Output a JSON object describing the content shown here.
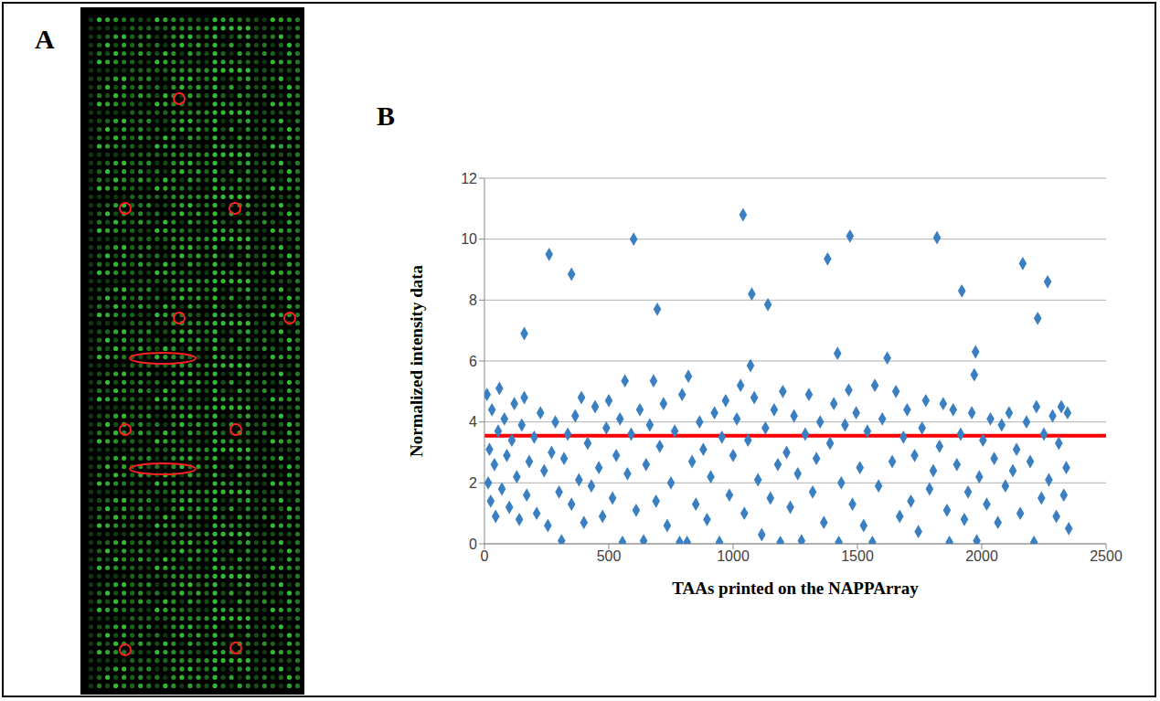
{
  "image_panel": {
    "label": "A"
  },
  "chart_data": {
    "type": "scatter",
    "panel_label": "B",
    "x_label": "TAAs printed on the NAPPArray",
    "y_label": "Normalized intensity data",
    "x": [
      10,
      15,
      20,
      25,
      30,
      40,
      45,
      55,
      60,
      70,
      80,
      90,
      100,
      110,
      120,
      130,
      140,
      150,
      160,
      170,
      180,
      200,
      210,
      225,
      240,
      255,
      270,
      285,
      300,
      310,
      320,
      335,
      350,
      365,
      380,
      390,
      400,
      415,
      430,
      445,
      460,
      475,
      490,
      500,
      515,
      530,
      545,
      555,
      565,
      575,
      590,
      610,
      625,
      640,
      650,
      665,
      680,
      690,
      705,
      720,
      735,
      750,
      765,
      785,
      795,
      815,
      820,
      835,
      850,
      865,
      880,
      895,
      910,
      925,
      945,
      955,
      970,
      985,
      1000,
      1015,
      1030,
      1045,
      1060,
      1085,
      1100,
      1115,
      1130,
      1150,
      1165,
      1180,
      1190,
      1200,
      1215,
      1230,
      1245,
      1260,
      1275,
      1290,
      1305,
      1320,
      1335,
      1350,
      1365,
      1390,
      1405,
      1425,
      1435,
      1450,
      1480,
      1495,
      1510,
      1525,
      1540,
      1560,
      1570,
      1585,
      1600,
      1640,
      1655,
      1670,
      1685,
      1700,
      1715,
      1730,
      1745,
      1760,
      1775,
      1790,
      1805,
      1830,
      1845,
      1860,
      1870,
      1885,
      1900,
      1915,
      1930,
      1945,
      1960,
      1980,
      1990,
      2005,
      2020,
      2035,
      2050,
      2065,
      2080,
      2095,
      2110,
      2125,
      2140,
      2155,
      2180,
      2195,
      2210,
      2220,
      2240,
      2250,
      2270,
      2285,
      2300,
      2310,
      2320,
      2330,
      2340,
      2345,
      2350,
      160,
      260,
      350,
      600,
      695,
      1040,
      1070,
      1075,
      1140,
      1380,
      1420,
      1465,
      1470,
      1620,
      1820,
      1920,
      1970,
      1975,
      2165,
      2225,
      2265
    ],
    "values": [
      4.9,
      2.0,
      3.1,
      1.4,
      4.4,
      2.6,
      0.9,
      3.7,
      5.1,
      1.8,
      4.1,
      2.9,
      1.2,
      3.4,
      4.6,
      2.2,
      0.8,
      3.9,
      4.8,
      1.6,
      2.7,
      3.5,
      1.0,
      4.3,
      2.4,
      0.6,
      3.0,
      4.0,
      1.7,
      0.1,
      2.8,
      3.6,
      1.3,
      4.2,
      2.1,
      4.8,
      0.7,
      3.3,
      1.9,
      4.5,
      2.5,
      0.9,
      3.8,
      4.7,
      1.5,
      2.9,
      4.1,
      0.05,
      5.35,
      2.3,
      3.6,
      1.1,
      4.4,
      0.1,
      2.6,
      3.9,
      5.35,
      1.4,
      3.2,
      4.6,
      0.6,
      2.0,
      3.7,
      0.05,
      4.9,
      0.05,
      5.5,
      2.7,
      1.3,
      4.0,
      3.1,
      0.8,
      2.2,
      4.3,
      0.05,
      3.5,
      4.7,
      1.6,
      2.9,
      4.1,
      5.2,
      1.0,
      3.4,
      4.8,
      2.1,
      0.3,
      3.8,
      1.5,
      4.4,
      2.6,
      0.05,
      5.0,
      3.0,
      1.2,
      4.2,
      2.3,
      0.1,
      3.6,
      4.9,
      1.7,
      2.8,
      4.0,
      0.7,
      3.3,
      4.6,
      0.05,
      2.0,
      3.9,
      1.3,
      4.3,
      2.5,
      0.6,
      3.7,
      0.05,
      5.2,
      1.9,
      4.1,
      2.7,
      5.0,
      0.9,
      3.5,
      4.4,
      1.4,
      2.9,
      0.4,
      3.8,
      4.7,
      1.8,
      2.4,
      3.2,
      4.6,
      1.1,
      0.05,
      4.4,
      2.6,
      3.6,
      0.8,
      1.7,
      4.3,
      0.1,
      2.2,
      3.4,
      1.3,
      4.1,
      2.8,
      0.7,
      3.9,
      1.9,
      4.3,
      2.4,
      3.1,
      1.0,
      4.0,
      2.7,
      0.05,
      4.5,
      1.5,
      3.6,
      2.1,
      4.2,
      0.9,
      3.3,
      4.5,
      1.6,
      2.5,
      4.3,
      0.5,
      6.9,
      9.5,
      8.85,
      10.0,
      7.7,
      10.8,
      5.85,
      8.2,
      7.85,
      9.35,
      6.25,
      5.05,
      10.1,
      6.1,
      10.05,
      8.3,
      5.55,
      6.3,
      9.2,
      7.4,
      8.6
    ],
    "color": "#3a7fc1",
    "marker": "diamond",
    "xlim": [
      0,
      2500
    ],
    "xticks": [
      0,
      500,
      1000,
      1500,
      2000,
      2500
    ],
    "ylim": [
      0,
      12
    ],
    "yticks": [
      0,
      2,
      4,
      6,
      8,
      10,
      12
    ],
    "grid": true,
    "threshold": {
      "value": 3.55,
      "color": "#ff0000"
    }
  }
}
